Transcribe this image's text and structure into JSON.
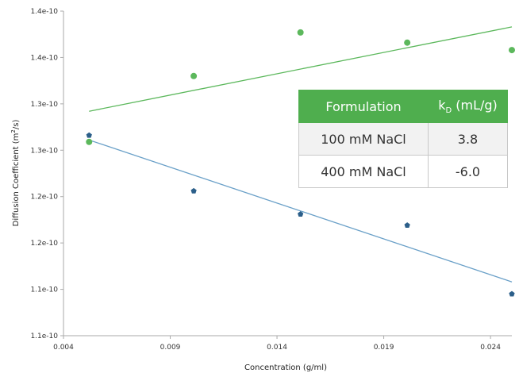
{
  "chart_data": {
    "type": "scatter",
    "xlabel": "Concentration (g/ml)",
    "ylabel_main": "Diffusion Coefficient (m",
    "ylabel_sup": "2",
    "ylabel_end": "/s)",
    "x_ticks": [
      "0.004",
      "0.009",
      "0.014",
      "0.019",
      "0.024"
    ],
    "x_tick_values": [
      0.004,
      0.009,
      0.014,
      0.019,
      0.024
    ],
    "y_ticks": [
      "1.4e-10",
      "1.4e-10",
      "1.3e-10",
      "1.3e-10",
      "1.2e-10",
      "1.2e-10",
      "1.1e-10",
      "1.1e-10"
    ],
    "y_tick_values": [
      1.4,
      1.35,
      1.3,
      1.25,
      1.2,
      1.15,
      1.1,
      1.05
    ],
    "xlim": [
      0.004,
      0.025
    ],
    "ylim": [
      1.05,
      1.4
    ],
    "grid": false,
    "series": [
      {
        "color": "#5cb85c",
        "marker": "circle",
        "x": [
          0.0052,
          0.0101,
          0.0151,
          0.0201,
          0.025
        ],
        "y": [
          1.259,
          1.33,
          1.377,
          1.366,
          1.358
        ],
        "trend": [
          [
            0.0052,
            1.292
          ],
          [
            0.025,
            1.383
          ]
        ]
      },
      {
        "color": "#2c5f8a",
        "marker": "pentagon",
        "trend_color": "#6aa0c8",
        "x": [
          0.0052,
          0.0101,
          0.0151,
          0.0201,
          0.025
        ],
        "y": [
          1.266,
          1.206,
          1.181,
          1.169,
          1.095
        ],
        "trend": [
          [
            0.0052,
            1.261
          ],
          [
            0.025,
            1.108
          ]
        ]
      }
    ]
  },
  "table": {
    "header_col1": "Formulation",
    "header_col2_main": "k",
    "header_col2_sub": "D",
    "header_col2_rest": " (mL/g)",
    "header_color": "#4fae4e",
    "rows": [
      {
        "formulation": "100 mM NaCl",
        "kd": "3.8"
      },
      {
        "formulation": "400 mM NaCl",
        "kd": "-6.0"
      }
    ]
  }
}
